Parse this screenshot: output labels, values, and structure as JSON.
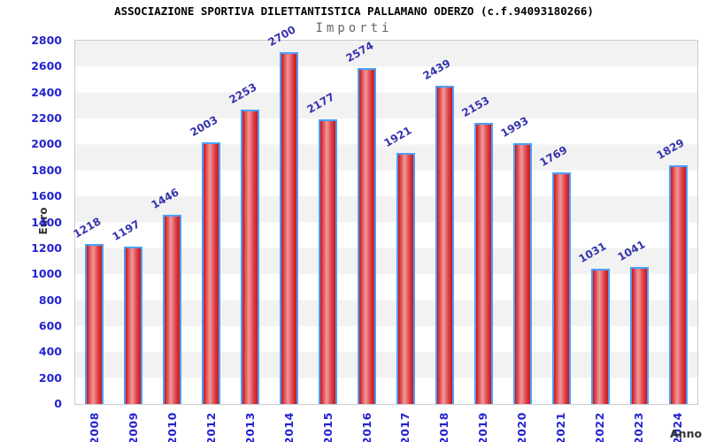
{
  "chart_data": {
    "type": "bar",
    "title": "ASSOCIAZIONE SPORTIVA DILETTANTISTICA PALLAMANO ODERZO (c.f.94093180266)",
    "subtitle": "Importi",
    "ylabel": "Euro",
    "xlabel": "Anno",
    "categories": [
      "2008",
      "2009",
      "2010",
      "2012",
      "2013",
      "2014",
      "2015",
      "2016",
      "2017",
      "2018",
      "2019",
      "2020",
      "2021",
      "2022",
      "2023",
      "2024"
    ],
    "values": [
      1218,
      1197,
      1446,
      2003,
      2253,
      2700,
      2177,
      2574,
      1921,
      2439,
      2153,
      1993,
      1769,
      1031,
      1041,
      1829
    ],
    "ylim": [
      0,
      2800
    ],
    "ytick_step": 200,
    "grid": "alternating horizontal bands every 200, gray top band",
    "legend": "none",
    "value_labels_rotated_deg": -30,
    "colors": {
      "bar_edge_red": "#cb151d",
      "bar_center_red": "#f0999b",
      "bar_border_blue": "#4aa0f8",
      "axis_label_blue": "#2424cf",
      "value_label_blue": "#3434ad",
      "band_gray": "#f2f2f2",
      "band_white": "#ffffff",
      "plot_border_gray": "#cccccc",
      "subtitle_gray": "#666666",
      "axis_title_dark": "#333333"
    }
  }
}
